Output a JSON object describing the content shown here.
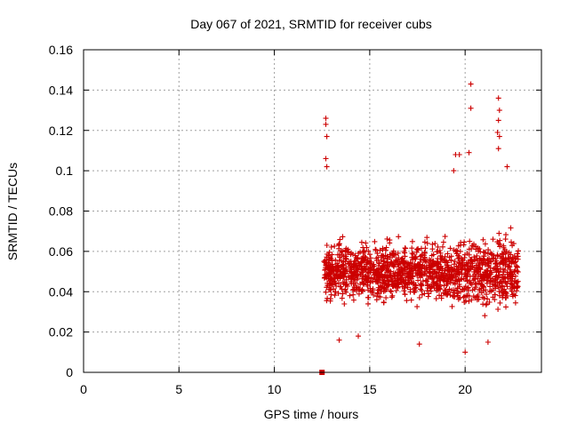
{
  "chart_data": {
    "type": "scatter",
    "title": "Day 067 of 2021, SRMTID for receiver cubs",
    "xlabel": "GPS time / hours",
    "ylabel": "SRMTID / TECUs",
    "xlim": [
      0,
      24
    ],
    "ylim": [
      0,
      0.16
    ],
    "xticks": [
      0,
      5,
      10,
      15,
      20
    ],
    "xtick_labels": [
      "0",
      "5",
      "10",
      "15",
      "20"
    ],
    "yticks": [
      0,
      0.02,
      0.04,
      0.06,
      0.08,
      0.1,
      0.12,
      0.14,
      0.16
    ],
    "ytick_labels": [
      "0",
      "0.02",
      "0.04",
      "0.06",
      "0.08",
      "0.1",
      "0.12",
      "0.14",
      "0.16"
    ],
    "grid": true,
    "marker_color": "#cc0000",
    "marker": "plus",
    "data_start_hour": 12.6,
    "data_end_hour": 22.8,
    "square_marker": {
      "x": 12.5,
      "y": 0
    },
    "notable_points": [
      {
        "x": 12.7,
        "y": 0.126
      },
      {
        "x": 12.7,
        "y": 0.123
      },
      {
        "x": 12.75,
        "y": 0.117
      },
      {
        "x": 12.7,
        "y": 0.106
      },
      {
        "x": 12.75,
        "y": 0.102
      },
      {
        "x": 20.3,
        "y": 0.143
      },
      {
        "x": 20.3,
        "y": 0.131
      },
      {
        "x": 21.75,
        "y": 0.136
      },
      {
        "x": 21.8,
        "y": 0.13
      },
      {
        "x": 21.75,
        "y": 0.125
      },
      {
        "x": 21.7,
        "y": 0.119
      },
      {
        "x": 21.8,
        "y": 0.117
      },
      {
        "x": 21.75,
        "y": 0.111
      },
      {
        "x": 20.2,
        "y": 0.109
      },
      {
        "x": 19.5,
        "y": 0.108
      },
      {
        "x": 19.7,
        "y": 0.108
      },
      {
        "x": 22.2,
        "y": 0.102
      },
      {
        "x": 19.4,
        "y": 0.1
      },
      {
        "x": 20.0,
        "y": 0.01
      },
      {
        "x": 21.2,
        "y": 0.015
      },
      {
        "x": 13.4,
        "y": 0.016
      },
      {
        "x": 14.4,
        "y": 0.018
      },
      {
        "x": 17.6,
        "y": 0.014
      }
    ],
    "bulk_range": {
      "y_min": 0.02,
      "y_max": 0.08,
      "y_center": 0.05
    }
  }
}
